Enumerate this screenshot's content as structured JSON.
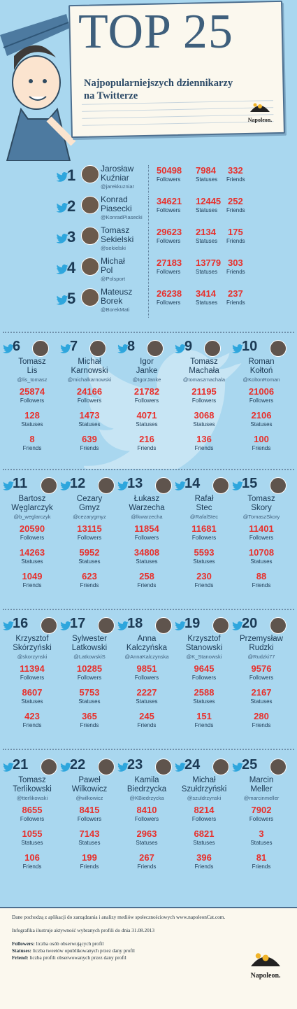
{
  "header": {
    "title": "TOP 25",
    "subtitle_line1": "Najpopularniejszych dziennikarzy",
    "subtitle_line2": "na Twitterze",
    "logo": "Napoleon."
  },
  "labels": {
    "followers": "Followers",
    "statuses": "Statuses",
    "friends": "Friends"
  },
  "top5": [
    {
      "rank": "1",
      "name1": "Jarosław",
      "name2": "Kuźniar",
      "handle": "@jarekkuzniar",
      "followers": "50498",
      "statuses": "7984",
      "friends": "332"
    },
    {
      "rank": "2",
      "name1": "Konrad",
      "name2": "Piasecki",
      "handle": "@KonradPiasecki",
      "followers": "34621",
      "statuses": "12445",
      "friends": "252"
    },
    {
      "rank": "3",
      "name1": "Tomasz",
      "name2": "Sekielski",
      "handle": "@sekielski",
      "followers": "29623",
      "statuses": "2134",
      "friends": "175"
    },
    {
      "rank": "4",
      "name1": "Michał",
      "name2": "Pol",
      "handle": "@Polsport",
      "followers": "27183",
      "statuses": "13779",
      "friends": "303"
    },
    {
      "rank": "5",
      "name1": "Mateusz",
      "name2": "Borek",
      "handle": "@BorekMati",
      "followers": "26238",
      "statuses": "3414",
      "friends": "237"
    }
  ],
  "grid": [
    {
      "rank": "6",
      "name1": "Tomasz",
      "name2": "Lis",
      "handle": "@lis_tomasz",
      "followers": "25874",
      "statuses": "128",
      "friends": "8"
    },
    {
      "rank": "7",
      "name1": "Michał",
      "name2": "Karnowski",
      "handle": "@michalkarnowski",
      "followers": "24166",
      "statuses": "1473",
      "friends": "639"
    },
    {
      "rank": "8",
      "name1": "Igor",
      "name2": "Janke",
      "handle": "@IgorJanke",
      "followers": "21782",
      "statuses": "4071",
      "friends": "216"
    },
    {
      "rank": "9",
      "name1": "Tomasz",
      "name2": "Machała",
      "handle": "@tomaszmachala",
      "followers": "21195",
      "statuses": "3068",
      "friends": "136"
    },
    {
      "rank": "10",
      "name1": "Roman",
      "name2": "Kołtoń",
      "handle": "@KoltonRoman",
      "followers": "21006",
      "statuses": "2106",
      "friends": "100"
    },
    {
      "rank": "11",
      "name1": "Bartosz",
      "name2": "Węglarczyk",
      "handle": "@b_weglarczyk",
      "followers": "20590",
      "statuses": "14263",
      "friends": "1049"
    },
    {
      "rank": "12",
      "name1": "Cezary",
      "name2": "Gmyz",
      "handle": "@cezarygmyz",
      "followers": "13115",
      "statuses": "5952",
      "friends": "623"
    },
    {
      "rank": "13",
      "name1": "Łukasz",
      "name2": "Warzecha",
      "handle": "@lkwarzecha",
      "followers": "11854",
      "statuses": "34808",
      "friends": "258"
    },
    {
      "rank": "14",
      "name1": "Rafał",
      "name2": "Stec",
      "handle": "@RafalStec",
      "followers": "11681",
      "statuses": "5593",
      "friends": "230"
    },
    {
      "rank": "15",
      "name1": "Tomasz",
      "name2": "Skory",
      "handle": "@TomaszSkory",
      "followers": "11401",
      "statuses": "10708",
      "friends": "88"
    },
    {
      "rank": "16",
      "name1": "Krzysztof",
      "name2": "Skórzyński",
      "handle": "@skorzynski",
      "followers": "11394",
      "statuses": "8607",
      "friends": "423"
    },
    {
      "rank": "17",
      "name1": "Sylwester",
      "name2": "Latkowski",
      "handle": "@LatkowskiS",
      "followers": "10285",
      "statuses": "5753",
      "friends": "365"
    },
    {
      "rank": "18",
      "name1": "Anna",
      "name2": "Kalczyńska",
      "handle": "@AnnaKalczynska",
      "followers": "9851",
      "statuses": "2227",
      "friends": "245"
    },
    {
      "rank": "19",
      "name1": "Krzysztof",
      "name2": "Stanowski",
      "handle": "@K_Stanowski",
      "followers": "9645",
      "statuses": "2588",
      "friends": "151"
    },
    {
      "rank": "20",
      "name1": "Przemysław",
      "name2": "Rudzki",
      "handle": "@Rudzki77",
      "followers": "9576",
      "statuses": "2167",
      "friends": "280"
    },
    {
      "rank": "21",
      "name1": "Tomasz",
      "name2": "Terlikowski",
      "handle": "@tterlikowski",
      "followers": "8655",
      "statuses": "1055",
      "friends": "106"
    },
    {
      "rank": "22",
      "name1": "Paweł",
      "name2": "Wilkowicz",
      "handle": "@wilkowicz",
      "followers": "8415",
      "statuses": "7143",
      "friends": "199"
    },
    {
      "rank": "23",
      "name1": "Kamila",
      "name2": "Biedrzycka",
      "handle": "@KBiedrzycka",
      "followers": "8410",
      "statuses": "2963",
      "friends": "267"
    },
    {
      "rank": "24",
      "name1": "Michał",
      "name2": "Szułdrzyński",
      "handle": "@szuldrzynski",
      "followers": "8214",
      "statuses": "6821",
      "friends": "396"
    },
    {
      "rank": "25",
      "name1": "Marcin",
      "name2": "Meller",
      "handle": "@marcinmeller",
      "followers": "7902",
      "statuses": "3",
      "friends": "81"
    }
  ],
  "footer": {
    "line1": "Dane pochodzą z aplikacji do zarządzania i analizy mediów społecznościowych www.napoleonCat.com.",
    "line2": "Infografika ilustruje aktywność wybranych profili do dnia 31.08.2013",
    "def1_term": "Followers:",
    "def1_text": "liczba osób obserwujących profil",
    "def2_term": "Statuses:",
    "def2_text": "liczba tweetów opublikowanych przez dany profil",
    "def3_term": "Friend:",
    "def3_text": "liczba profili obserwowanych przez dany profil",
    "logo": "Napoleon."
  }
}
